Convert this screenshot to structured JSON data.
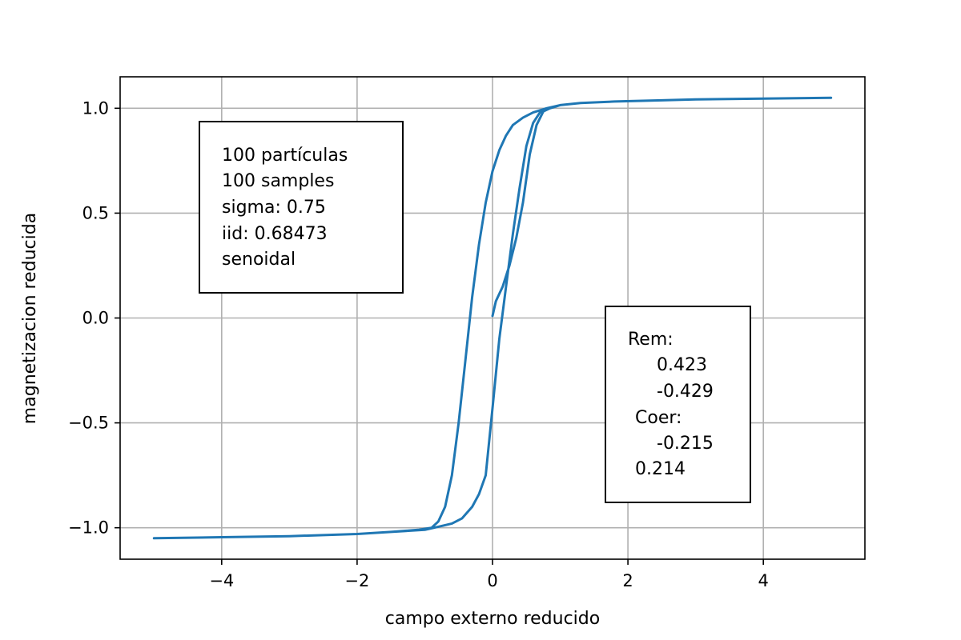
{
  "chart_data": {
    "type": "line",
    "title": "",
    "xlabel": "campo externo reducido",
    "ylabel": "magnetizacion reducida",
    "xlim": [
      -5.5,
      5.5
    ],
    "ylim": [
      -1.15,
      1.15
    ],
    "x_ticks": [
      -4,
      -2,
      0,
      2,
      4
    ],
    "x_tick_labels": [
      "−4",
      "−2",
      "0",
      "2",
      "4"
    ],
    "y_ticks": [
      -1.0,
      -0.5,
      0.0,
      0.5,
      1.0
    ],
    "y_tick_labels": [
      "−1.0",
      "−0.5",
      "0.0",
      "0.5",
      "1.0"
    ],
    "grid": true,
    "line_color": "#1f77b4",
    "series": [
      {
        "points": [
          [
            0.0,
            0.01
          ],
          [
            0.05,
            0.08
          ],
          [
            0.15,
            0.15
          ],
          [
            0.25,
            0.25
          ],
          [
            0.35,
            0.38
          ],
          [
            0.45,
            0.55
          ],
          [
            0.55,
            0.78
          ],
          [
            0.65,
            0.92
          ],
          [
            0.75,
            0.985
          ],
          [
            0.85,
            1.0
          ],
          [
            1.0,
            1.015
          ],
          [
            1.3,
            1.025
          ],
          [
            1.8,
            1.032
          ],
          [
            2.5,
            1.038
          ],
          [
            3.0,
            1.042
          ],
          [
            4.0,
            1.046
          ],
          [
            5.0,
            1.05
          ],
          [
            4.0,
            1.046
          ],
          [
            3.0,
            1.042
          ],
          [
            2.5,
            1.038
          ],
          [
            1.8,
            1.032
          ],
          [
            1.3,
            1.025
          ],
          [
            1.0,
            1.015
          ],
          [
            0.8,
            1.0
          ],
          [
            0.6,
            0.98
          ],
          [
            0.45,
            0.955
          ],
          [
            0.3,
            0.92
          ],
          [
            0.2,
            0.87
          ],
          [
            0.1,
            0.8
          ],
          [
            0.0,
            0.7
          ],
          [
            -0.1,
            0.55
          ],
          [
            -0.2,
            0.35
          ],
          [
            -0.3,
            0.1
          ],
          [
            -0.4,
            -0.2
          ],
          [
            -0.5,
            -0.5
          ],
          [
            -0.6,
            -0.75
          ],
          [
            -0.7,
            -0.9
          ],
          [
            -0.8,
            -0.97
          ],
          [
            -0.9,
            -1.0
          ],
          [
            -1.1,
            -1.01
          ],
          [
            -1.5,
            -1.02
          ],
          [
            -2.0,
            -1.03
          ],
          [
            -3.0,
            -1.04
          ],
          [
            -4.0,
            -1.045
          ],
          [
            -5.0,
            -1.05
          ],
          [
            -4.0,
            -1.045
          ],
          [
            -3.0,
            -1.04
          ],
          [
            -2.0,
            -1.03
          ],
          [
            -1.5,
            -1.02
          ],
          [
            -1.0,
            -1.01
          ],
          [
            -0.8,
            -0.995
          ],
          [
            -0.6,
            -0.98
          ],
          [
            -0.45,
            -0.955
          ],
          [
            -0.3,
            -0.9
          ],
          [
            -0.2,
            -0.84
          ],
          [
            -0.1,
            -0.75
          ],
          [
            0.0,
            -0.43
          ],
          [
            0.1,
            -0.1
          ],
          [
            0.2,
            0.15
          ],
          [
            0.3,
            0.4
          ],
          [
            0.4,
            0.62
          ],
          [
            0.5,
            0.82
          ],
          [
            0.6,
            0.93
          ],
          [
            0.7,
            0.98
          ],
          [
            0.85,
            1.0
          ],
          [
            1.0,
            1.015
          ]
        ]
      }
    ],
    "annotations": {
      "info_box": [
        "100 partículas",
        "100 samples",
        "sigma: 0.75",
        "iid: 0.68473",
        "senoidal"
      ],
      "rem_coer_box": [
        "Rem:",
        "0.423",
        "-0.429",
        "Coer:",
        "-0.215",
        "0.214"
      ]
    }
  }
}
